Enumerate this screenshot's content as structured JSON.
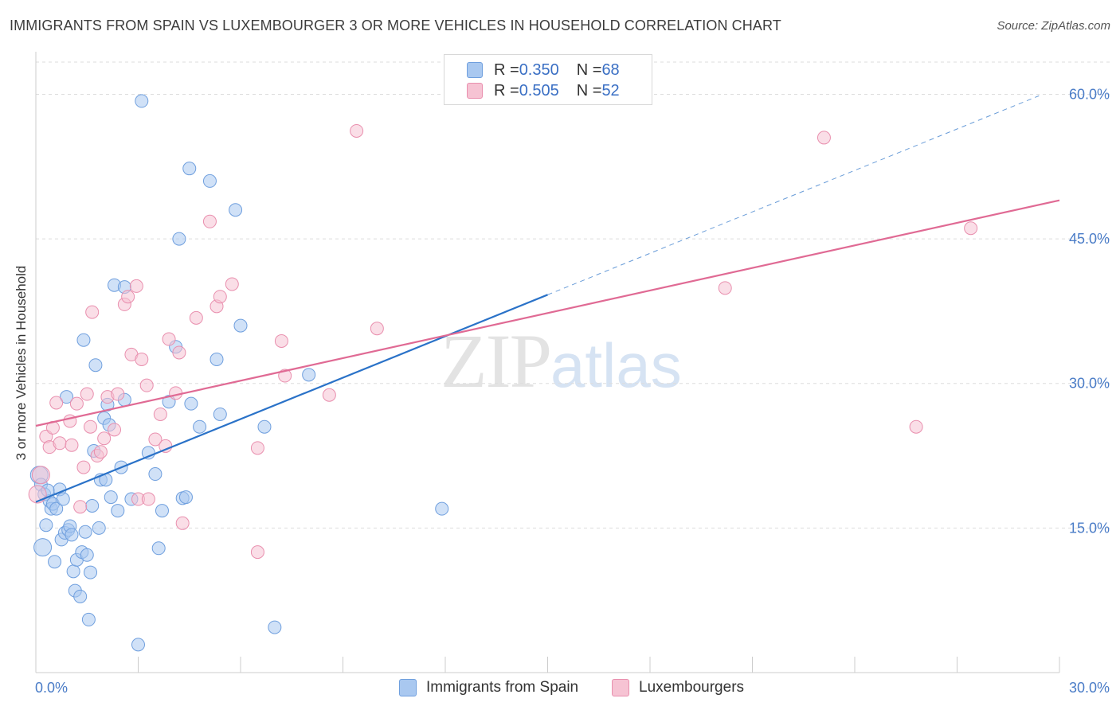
{
  "header": {
    "title": "IMMIGRANTS FROM SPAIN VS LUXEMBOURGER 3 OR MORE VEHICLES IN HOUSEHOLD CORRELATION CHART",
    "source": "Source: ZipAtlas.com"
  },
  "watermark": {
    "zip": "ZIP",
    "atlas": "atlas"
  },
  "colors": {
    "spain_fill": "#a9c8f0",
    "spain_stroke": "#6f9fde",
    "spain_line": "#2a72c8",
    "lux_fill": "#f6c3d3",
    "lux_stroke": "#e98fae",
    "lux_line": "#e06a94",
    "tick": "#4a7cc7",
    "grid": "#dddddd"
  },
  "legend": {
    "rows": [
      {
        "r_label": "R = ",
        "r_value": "0.350",
        "n_label": "N = ",
        "n_value": "68",
        "color": "#a9c8f0"
      },
      {
        "r_label": "R = ",
        "r_value": "0.505",
        "n_label": "N = ",
        "n_value": "52",
        "color": "#f6c3d3"
      }
    ],
    "bottom": [
      {
        "label": "Immigrants from Spain",
        "color": "#a9c8f0"
      },
      {
        "label": "Luxembourgers",
        "color": "#f6c3d3"
      }
    ]
  },
  "chart_data": {
    "type": "scatter",
    "title": "IMMIGRANTS FROM SPAIN VS LUXEMBOURGER 3 OR MORE VEHICLES IN HOUSEHOLD CORRELATION CHART",
    "xlabel": "",
    "ylabel": "3 or more Vehicles in Household",
    "xlim": [
      0,
      30
    ],
    "ylim": [
      0,
      64
    ],
    "x_ticks": [
      "0.0%",
      "30.0%"
    ],
    "y_ticks": [
      {
        "value": 15,
        "label": "15.0%"
      },
      {
        "value": 30,
        "label": "30.0%"
      },
      {
        "value": 45,
        "label": "45.0%"
      },
      {
        "value": 60,
        "label": "60.0%"
      }
    ],
    "grid": true,
    "legend_position": "top-center",
    "series": [
      {
        "name": "Immigrants from Spain",
        "points": [
          [
            0.1,
            20.5
          ],
          [
            0.15,
            19.5
          ],
          [
            0.2,
            13.0
          ],
          [
            0.25,
            18.5
          ],
          [
            0.3,
            15.3
          ],
          [
            0.4,
            17.8
          ],
          [
            0.45,
            17.0
          ],
          [
            0.5,
            17.5
          ],
          [
            0.55,
            11.5
          ],
          [
            0.6,
            17.0
          ],
          [
            0.7,
            19.0
          ],
          [
            0.75,
            13.8
          ],
          [
            0.8,
            18.0
          ],
          [
            0.85,
            14.5
          ],
          [
            0.95,
            14.8
          ],
          [
            1.0,
            15.2
          ],
          [
            1.05,
            14.3
          ],
          [
            1.1,
            10.5
          ],
          [
            1.15,
            8.5
          ],
          [
            1.2,
            11.7
          ],
          [
            1.3,
            7.9
          ],
          [
            1.35,
            12.5
          ],
          [
            1.45,
            14.6
          ],
          [
            1.5,
            12.2
          ],
          [
            1.55,
            5.5
          ],
          [
            1.6,
            10.4
          ],
          [
            1.65,
            17.3
          ],
          [
            1.7,
            23.0
          ],
          [
            1.75,
            31.9
          ],
          [
            1.85,
            15.0
          ],
          [
            1.9,
            20.0
          ],
          [
            2.0,
            26.4
          ],
          [
            2.05,
            20.0
          ],
          [
            2.1,
            27.8
          ],
          [
            2.15,
            25.7
          ],
          [
            2.2,
            18.2
          ],
          [
            2.3,
            40.2
          ],
          [
            2.4,
            16.8
          ],
          [
            2.5,
            21.3
          ],
          [
            2.6,
            40.0
          ],
          [
            2.8,
            18.0
          ],
          [
            3.0,
            2.9
          ],
          [
            3.1,
            59.3
          ],
          [
            3.3,
            22.8
          ],
          [
            3.5,
            20.6
          ],
          [
            3.6,
            12.9
          ],
          [
            3.7,
            16.8
          ],
          [
            3.9,
            28.1
          ],
          [
            4.1,
            33.8
          ],
          [
            4.2,
            45.0
          ],
          [
            4.3,
            18.1
          ],
          [
            4.4,
            18.2
          ],
          [
            4.5,
            52.3
          ],
          [
            4.55,
            27.9
          ],
          [
            4.8,
            25.5
          ],
          [
            5.1,
            51.0
          ],
          [
            5.3,
            32.5
          ],
          [
            5.4,
            26.8
          ],
          [
            5.85,
            48.0
          ],
          [
            6.0,
            36.0
          ],
          [
            6.7,
            25.5
          ],
          [
            7.0,
            4.7
          ],
          [
            8.0,
            30.9
          ],
          [
            11.9,
            17.0
          ],
          [
            1.4,
            34.5
          ],
          [
            0.9,
            28.6
          ],
          [
            0.35,
            18.9
          ],
          [
            2.6,
            28.3
          ]
        ]
      },
      {
        "name": "Luxembourgers",
        "points": [
          [
            0.05,
            18.5
          ],
          [
            0.15,
            20.5
          ],
          [
            0.3,
            24.5
          ],
          [
            0.4,
            23.4
          ],
          [
            0.5,
            25.4
          ],
          [
            0.6,
            28.0
          ],
          [
            0.7,
            23.8
          ],
          [
            1.0,
            26.1
          ],
          [
            1.05,
            23.6
          ],
          [
            1.2,
            27.9
          ],
          [
            1.3,
            17.2
          ],
          [
            1.4,
            21.3
          ],
          [
            1.5,
            28.9
          ],
          [
            1.6,
            25.5
          ],
          [
            1.65,
            37.4
          ],
          [
            1.8,
            22.5
          ],
          [
            1.9,
            22.9
          ],
          [
            2.0,
            24.3
          ],
          [
            2.1,
            28.6
          ],
          [
            2.3,
            25.2
          ],
          [
            2.4,
            28.9
          ],
          [
            2.6,
            38.2
          ],
          [
            2.7,
            39.0
          ],
          [
            2.8,
            33.0
          ],
          [
            2.95,
            40.1
          ],
          [
            3.0,
            18.0
          ],
          [
            3.1,
            32.5
          ],
          [
            3.25,
            29.8
          ],
          [
            3.3,
            18.0
          ],
          [
            3.5,
            24.2
          ],
          [
            3.65,
            26.8
          ],
          [
            3.8,
            23.5
          ],
          [
            3.9,
            34.6
          ],
          [
            4.1,
            29.0
          ],
          [
            4.2,
            33.2
          ],
          [
            4.3,
            15.5
          ],
          [
            4.7,
            36.8
          ],
          [
            5.1,
            46.8
          ],
          [
            5.3,
            38.0
          ],
          [
            5.4,
            39.0
          ],
          [
            5.75,
            40.3
          ],
          [
            6.5,
            23.3
          ],
          [
            6.5,
            12.5
          ],
          [
            7.2,
            34.4
          ],
          [
            7.3,
            30.8
          ],
          [
            8.6,
            28.8
          ],
          [
            9.4,
            56.2
          ],
          [
            10.0,
            35.7
          ],
          [
            20.2,
            39.9
          ],
          [
            23.1,
            55.5
          ],
          [
            25.8,
            25.5
          ],
          [
            27.4,
            46.1
          ]
        ]
      }
    ],
    "trendlines": [
      {
        "series": "Immigrants from Spain",
        "x": [
          0,
          15
        ],
        "y": [
          17.7,
          39.2
        ],
        "dashed_extension_to_x": 29.4
      },
      {
        "series": "Luxembourgers",
        "x": [
          0,
          30
        ],
        "y": [
          25.6,
          49.0
        ]
      }
    ]
  }
}
